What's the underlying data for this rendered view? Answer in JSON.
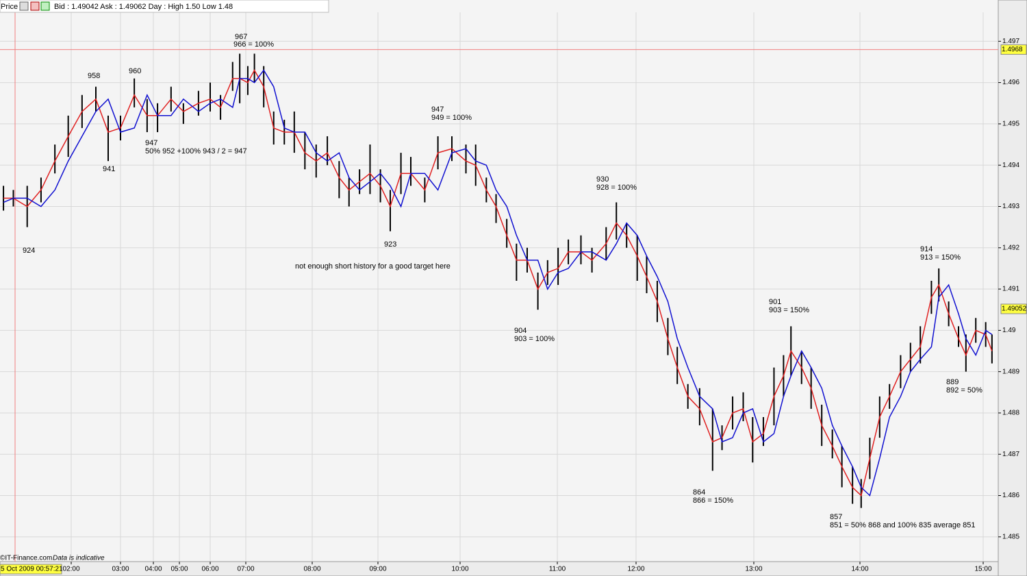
{
  "toolbar": {
    "label": "Price",
    "quote": "Bid : 1.49042 Ask : 1.49062  Day : High 1.50 Low 1.48"
  },
  "footer": {
    "source": "©IT-Finance.com",
    "note": "Data is indicative",
    "timestamp": "5 Oct 2009 00:57:21"
  },
  "chart_data": {
    "type": "ohlc",
    "xlim": [
      0.56,
      15.12
    ],
    "xticks": [
      {
        "value": 2,
        "label": "02:00"
      },
      {
        "value": 3,
        "label": "03:00"
      },
      {
        "value": 4,
        "label": "04:00"
      },
      {
        "value": 5,
        "label": "05:00"
      },
      {
        "value": 6,
        "label": "06:00"
      },
      {
        "value": 7,
        "label": "07:00"
      },
      {
        "value": 8,
        "label": "08:00"
      },
      {
        "value": 9,
        "label": "09:00"
      },
      {
        "value": 10,
        "label": "10:00"
      },
      {
        "value": 11,
        "label": "11:00"
      },
      {
        "value": 12,
        "label": "12:00"
      },
      {
        "value": 13,
        "label": "13:00"
      },
      {
        "value": 14,
        "label": "14:00"
      },
      {
        "value": 15,
        "label": "15:00"
      }
    ],
    "ylim": [
      1.4844,
      1.498
    ],
    "yticks": [
      1.485,
      1.486,
      1.487,
      1.488,
      1.489,
      1.49,
      1.491,
      1.492,
      1.493,
      1.494,
      1.495,
      1.496,
      1.497
    ],
    "grid": true,
    "bar_color": "#000000",
    "x": [
      0.63,
      0.83,
      1.11,
      1.39,
      1.67,
      1.94,
      2.22,
      2.5,
      2.75,
      3.0,
      3.42,
      3.81,
      4.16,
      4.68,
      5.13,
      5.62,
      6.0,
      6.29,
      6.63,
      6.83,
      7.03,
      7.13,
      7.27,
      7.42,
      7.58,
      7.73,
      7.89,
      8.06,
      8.23,
      8.41,
      8.56,
      8.72,
      8.88,
      9.03,
      9.15,
      9.28,
      9.4,
      9.57,
      9.73,
      9.9,
      10.06,
      10.16,
      10.27,
      10.37,
      10.48,
      10.58,
      10.69,
      10.8,
      10.9,
      11.01,
      11.14,
      11.3,
      11.44,
      11.62,
      11.75,
      11.88,
      12.01,
      12.09,
      12.18,
      12.27,
      12.35,
      12.44,
      12.54,
      12.65,
      12.73,
      12.82,
      12.91,
      12.99,
      13.09,
      13.19,
      13.28,
      13.35,
      13.45,
      13.54,
      13.64,
      13.74,
      13.83,
      13.93,
      14.01,
      14.08,
      14.16,
      14.24,
      14.33,
      14.41,
      14.49,
      14.58,
      14.64,
      14.72,
      14.8,
      14.86,
      14.94,
      15.02,
      15.07
    ],
    "high": [
      1.4935,
      1.4934,
      1.4935,
      1.4937,
      1.4945,
      1.4952,
      1.4957,
      1.4959,
      1.4952,
      1.4952,
      1.4961,
      1.4956,
      1.4955,
      1.4959,
      1.4955,
      1.4958,
      1.496,
      1.4957,
      1.4965,
      1.4967,
      1.4964,
      1.4967,
      1.4964,
      1.4953,
      1.4951,
      1.4953,
      1.4948,
      1.4945,
      1.4947,
      1.4941,
      1.4937,
      1.4939,
      1.4945,
      1.4939,
      1.4934,
      1.4943,
      1.4942,
      1.4937,
      1.4947,
      1.4947,
      1.4945,
      1.4945,
      1.4937,
      1.4933,
      1.4927,
      1.4921,
      1.492,
      1.4914,
      1.4917,
      1.492,
      1.4922,
      1.4923,
      1.492,
      1.4925,
      1.4931,
      1.4926,
      1.4923,
      1.4918,
      1.4912,
      1.4903,
      1.4896,
      1.4887,
      1.4886,
      1.4881,
      1.4877,
      1.4884,
      1.4885,
      1.4879,
      1.4879,
      1.4891,
      1.4894,
      1.4901,
      1.4895,
      1.4891,
      1.4882,
      1.4876,
      1.4872,
      1.4867,
      1.4864,
      1.4874,
      1.4884,
      1.4887,
      1.4894,
      1.4897,
      1.4901,
      1.4912,
      1.4915,
      1.4907,
      1.4901,
      1.4899,
      1.4903,
      1.4902,
      1.4899
    ],
    "low": [
      1.4929,
      1.493,
      1.4925,
      1.4931,
      1.4938,
      1.4942,
      1.4949,
      1.4953,
      1.4941,
      1.4946,
      1.4954,
      1.4948,
      1.4948,
      1.4953,
      1.495,
      1.4952,
      1.4953,
      1.4951,
      1.4958,
      1.4955,
      1.4957,
      1.496,
      1.4954,
      1.4945,
      1.4945,
      1.4943,
      1.4939,
      1.4937,
      1.494,
      1.4932,
      1.493,
      1.4933,
      1.4933,
      1.4931,
      1.4924,
      1.4933,
      1.4935,
      1.4931,
      1.4939,
      1.4941,
      1.4938,
      1.4935,
      1.4931,
      1.4926,
      1.492,
      1.4912,
      1.4914,
      1.4905,
      1.4911,
      1.4911,
      1.4916,
      1.4916,
      1.4914,
      1.4917,
      1.4922,
      1.492,
      1.4912,
      1.4909,
      1.4902,
      1.4894,
      1.4887,
      1.4881,
      1.4877,
      1.4866,
      1.4871,
      1.4876,
      1.4878,
      1.4868,
      1.4872,
      1.4877,
      1.4884,
      1.4889,
      1.4887,
      1.4881,
      1.4872,
      1.4869,
      1.4862,
      1.4858,
      1.4857,
      1.4864,
      1.4874,
      1.4881,
      1.4886,
      1.489,
      1.4892,
      1.4904,
      1.4907,
      1.4901,
      1.4896,
      1.489,
      1.4897,
      1.4896,
      1.4892
    ],
    "lines": [
      {
        "color": "#e02020",
        "values": [
          1.4932,
          1.4932,
          1.493,
          1.4934,
          1.4941,
          1.4947,
          1.4953,
          1.4956,
          1.4948,
          1.4949,
          1.4957,
          1.4952,
          1.4952,
          1.4956,
          1.4953,
          1.4955,
          1.4956,
          1.4954,
          1.4961,
          1.4961,
          1.496,
          1.4963,
          1.4959,
          1.4949,
          1.4948,
          1.4948,
          1.4943,
          1.4941,
          1.4943,
          1.4937,
          1.4934,
          1.4936,
          1.4938,
          1.4935,
          1.493,
          1.4938,
          1.4938,
          1.4934,
          1.4943,
          1.4944,
          1.4941,
          1.494,
          1.4934,
          1.493,
          1.4923,
          1.4917,
          1.4917,
          1.491,
          1.4914,
          1.4915,
          1.4919,
          1.4919,
          1.4917,
          1.4921,
          1.4926,
          1.4923,
          1.4918,
          1.4913,
          1.4907,
          1.4898,
          1.4891,
          1.4884,
          1.4881,
          1.4873,
          1.4874,
          1.488,
          1.4881,
          1.4873,
          1.4875,
          1.4884,
          1.4889,
          1.4895,
          1.4891,
          1.4886,
          1.4877,
          1.4872,
          1.4867,
          1.4862,
          1.486,
          1.4869,
          1.4879,
          1.4884,
          1.489,
          1.4893,
          1.4896,
          1.4908,
          1.4911,
          1.4904,
          1.4898,
          1.4894,
          1.49,
          1.4899,
          1.4895
        ]
      },
      {
        "color": "#1010d0",
        "values": [
          1.4931,
          1.4932,
          1.4932,
          1.493,
          1.4934,
          1.4941,
          1.4947,
          1.4953,
          1.4956,
          1.4948,
          1.4949,
          1.4957,
          1.4952,
          1.4952,
          1.4956,
          1.4953,
          1.4955,
          1.4956,
          1.4954,
          1.4961,
          1.4961,
          1.496,
          1.4963,
          1.4959,
          1.4949,
          1.4948,
          1.4948,
          1.4943,
          1.4941,
          1.4943,
          1.4937,
          1.4934,
          1.4936,
          1.4938,
          1.4935,
          1.493,
          1.4938,
          1.4938,
          1.4934,
          1.4943,
          1.4944,
          1.4941,
          1.494,
          1.4934,
          1.493,
          1.4923,
          1.4917,
          1.4917,
          1.491,
          1.4914,
          1.4915,
          1.4919,
          1.4919,
          1.4917,
          1.4921,
          1.4926,
          1.4923,
          1.4918,
          1.4913,
          1.4907,
          1.4898,
          1.4891,
          1.4884,
          1.4881,
          1.4873,
          1.4874,
          1.488,
          1.4881,
          1.4873,
          1.4875,
          1.4884,
          1.4889,
          1.4895,
          1.4891,
          1.4886,
          1.4877,
          1.4872,
          1.4867,
          1.4862,
          1.486,
          1.4869,
          1.4879,
          1.4884,
          1.489,
          1.4893,
          1.4896,
          1.4908,
          1.4911,
          1.4904,
          1.4898,
          1.4894,
          1.49,
          1.4899
        ]
      }
    ],
    "reference_line": 1.4968,
    "reference_color": "#f08080",
    "last_price": 1.49052,
    "annotations": [
      "967",
      "966 = 100%",
      "958",
      "960",
      "947",
      "50% 952 +100% 943 / 2 = 947",
      "941",
      "924",
      "923",
      "not enough  short history for a good target here",
      "947",
      "949 = 100%",
      "930",
      "928 = 100%",
      "904",
      "903 = 100%",
      "864",
      "866 = 150%",
      "901",
      "903 = 150%",
      "857",
      "851 = 50% 868 and 100% 835 average 851",
      "914",
      "913 = 150%",
      "889",
      "892 = 50%"
    ]
  }
}
